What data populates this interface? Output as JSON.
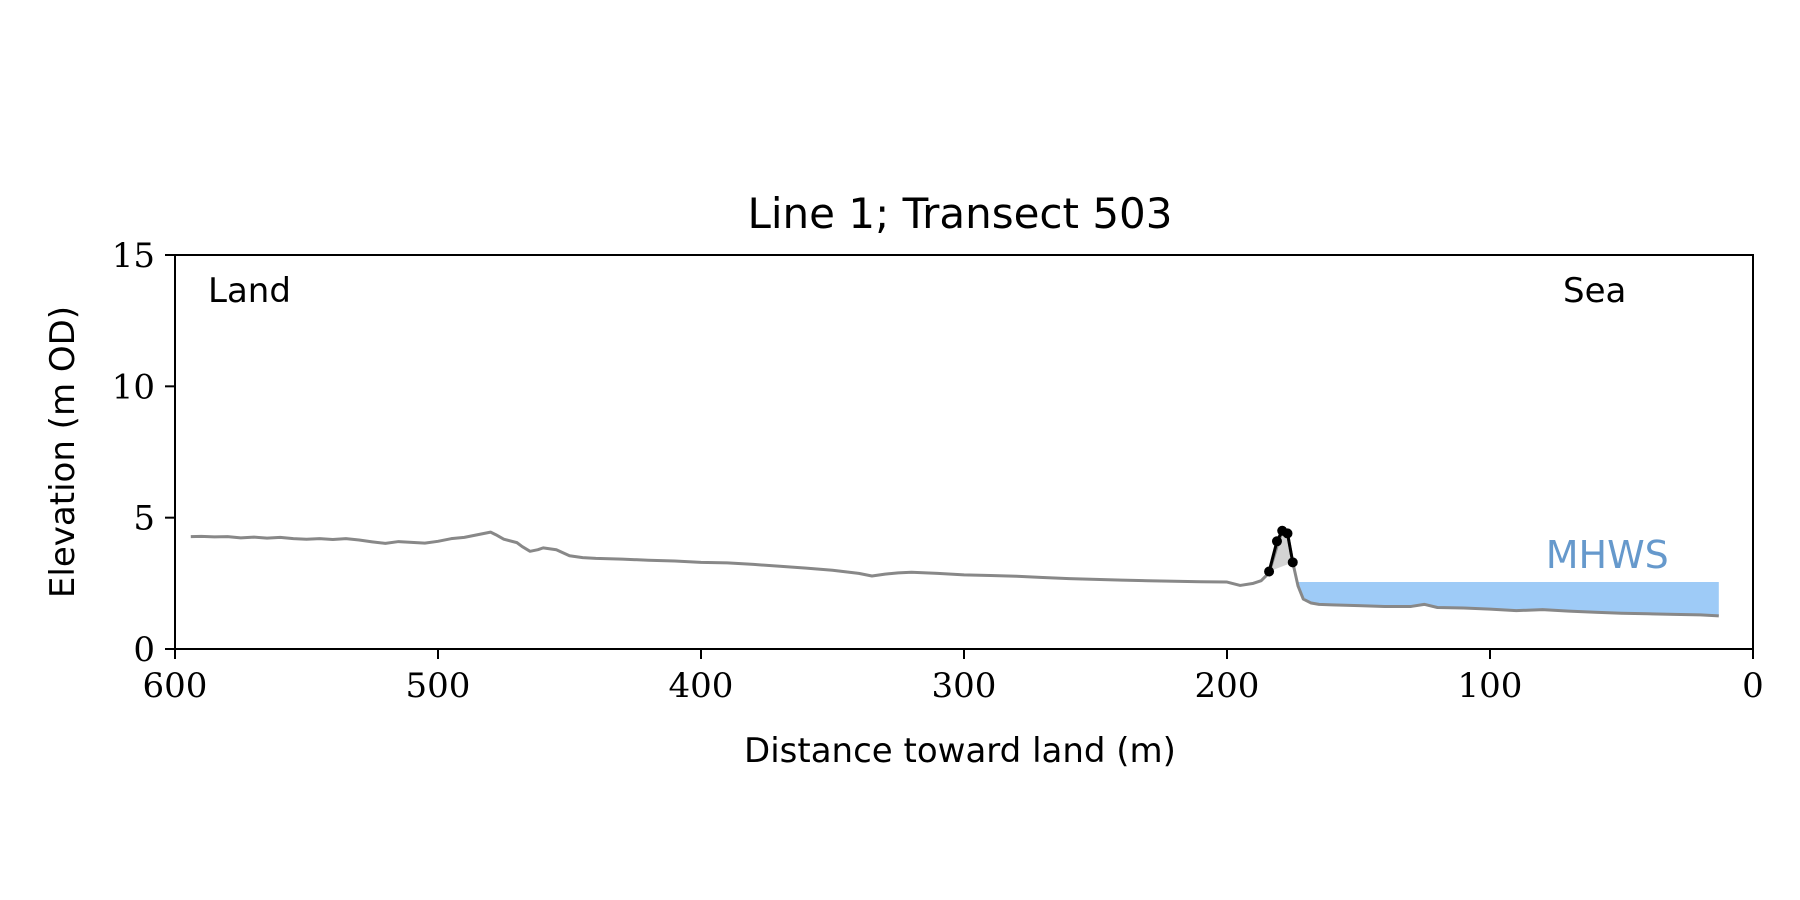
{
  "chart_data": {
    "type": "line",
    "title": "Line 1; Transect 503",
    "xlabel": "Distance toward land (m)",
    "ylabel": "Elevation (m OD)",
    "xlim": [
      600,
      0
    ],
    "ylim": [
      0,
      15
    ],
    "x_ticks": [
      600,
      500,
      400,
      300,
      200,
      100,
      0
    ],
    "y_ticks": [
      0,
      5,
      10,
      15
    ],
    "grid": false,
    "annotations": {
      "land": "Land",
      "sea": "Sea"
    },
    "colors": {
      "profile": "#888888",
      "dune": "#000000",
      "dune_fill": "#d3d3d3",
      "mhws": "#9ecbf7",
      "mhws_label": "#6699cc"
    },
    "profile": {
      "x": [
        594,
        590,
        585,
        580,
        575,
        570,
        565,
        560,
        555,
        550,
        545,
        540,
        535,
        530,
        525,
        520,
        515,
        510,
        505,
        500,
        495,
        490,
        485,
        480,
        478,
        475,
        470,
        468,
        465,
        462,
        460,
        455,
        450,
        445,
        440,
        430,
        420,
        410,
        400,
        390,
        380,
        370,
        360,
        350,
        340,
        335,
        330,
        325,
        320,
        310,
        300,
        290,
        280,
        270,
        260,
        250,
        240,
        230,
        220,
        210,
        200,
        195,
        190,
        187,
        184,
        181,
        179,
        177,
        175,
        173,
        171,
        168,
        165,
        160,
        150,
        140,
        130,
        125,
        120,
        110,
        100,
        90,
        80,
        70,
        60,
        50,
        40,
        30,
        20,
        13
      ],
      "y": [
        4.28,
        4.29,
        4.27,
        4.28,
        4.23,
        4.26,
        4.22,
        4.25,
        4.2,
        4.18,
        4.2,
        4.17,
        4.2,
        4.15,
        4.08,
        4.02,
        4.09,
        4.06,
        4.03,
        4.1,
        4.2,
        4.25,
        4.35,
        4.45,
        4.35,
        4.18,
        4.05,
        3.9,
        3.72,
        3.78,
        3.85,
        3.78,
        3.55,
        3.48,
        3.45,
        3.42,
        3.38,
        3.35,
        3.3,
        3.28,
        3.22,
        3.15,
        3.08,
        3.0,
        2.88,
        2.78,
        2.85,
        2.9,
        2.92,
        2.88,
        2.82,
        2.8,
        2.77,
        2.72,
        2.68,
        2.65,
        2.62,
        2.6,
        2.58,
        2.56,
        2.55,
        2.42,
        2.5,
        2.6,
        2.9,
        3.9,
        4.5,
        4.4,
        3.3,
        2.4,
        1.9,
        1.75,
        1.7,
        1.68,
        1.65,
        1.62,
        1.62,
        1.7,
        1.58,
        1.56,
        1.52,
        1.46,
        1.5,
        1.44,
        1.4,
        1.36,
        1.34,
        1.32,
        1.3,
        1.26
      ]
    },
    "dune": {
      "x": [
        184,
        181,
        179,
        177,
        175
      ],
      "y": [
        2.95,
        4.1,
        4.5,
        4.4,
        3.3
      ]
    },
    "mhws": {
      "label": "MHWS",
      "level": 2.55,
      "x_start": 173,
      "x_end": 13
    }
  }
}
